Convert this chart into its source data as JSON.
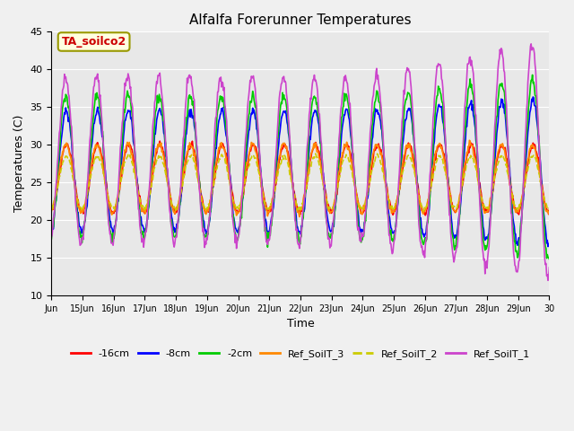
{
  "title": "Alfalfa Forerunner Temperatures",
  "xlabel": "Time",
  "ylabel": "Temperatures (C)",
  "ylim": [
    10,
    45
  ],
  "xlim": [
    0,
    16
  ],
  "background_color": "#f0f0f0",
  "plot_bg_color": "#e8e8e8",
  "annotation_text": "TA_soilco2",
  "annotation_color": "#cc0000",
  "annotation_bg": "#ffffe0",
  "annotation_border": "#999900",
  "x_tick_labels": [
    "Jun",
    "15Jun",
    "16Jun",
    "17Jun",
    "18Jun",
    "19Jun",
    "20Jun",
    "21Jun",
    "22Jun",
    "23Jun",
    "24Jun",
    "25Jun",
    "26Jun",
    "27Jun",
    "28Jun",
    "29Jun",
    "30"
  ],
  "series": {
    "-16cm": {
      "color": "#ff0000",
      "linewidth": 1.2,
      "linestyle": "-"
    },
    "-8cm": {
      "color": "#0000ff",
      "linewidth": 1.2,
      "linestyle": "-"
    },
    "-2cm": {
      "color": "#00cc00",
      "linewidth": 1.2,
      "linestyle": "-"
    },
    "Ref_SoilT_3": {
      "color": "#ff8800",
      "linewidth": 1.2,
      "linestyle": "-"
    },
    "Ref_SoilT_2": {
      "color": "#cccc00",
      "linewidth": 1.2,
      "linestyle": "--"
    },
    "Ref_SoilT_1": {
      "color": "#cc44cc",
      "linewidth": 1.2,
      "linestyle": "-"
    }
  },
  "yticks": [
    10,
    15,
    20,
    25,
    30,
    35,
    40,
    45
  ],
  "legend_fontsize": 8,
  "title_fontsize": 11,
  "axis_fontsize": 9
}
